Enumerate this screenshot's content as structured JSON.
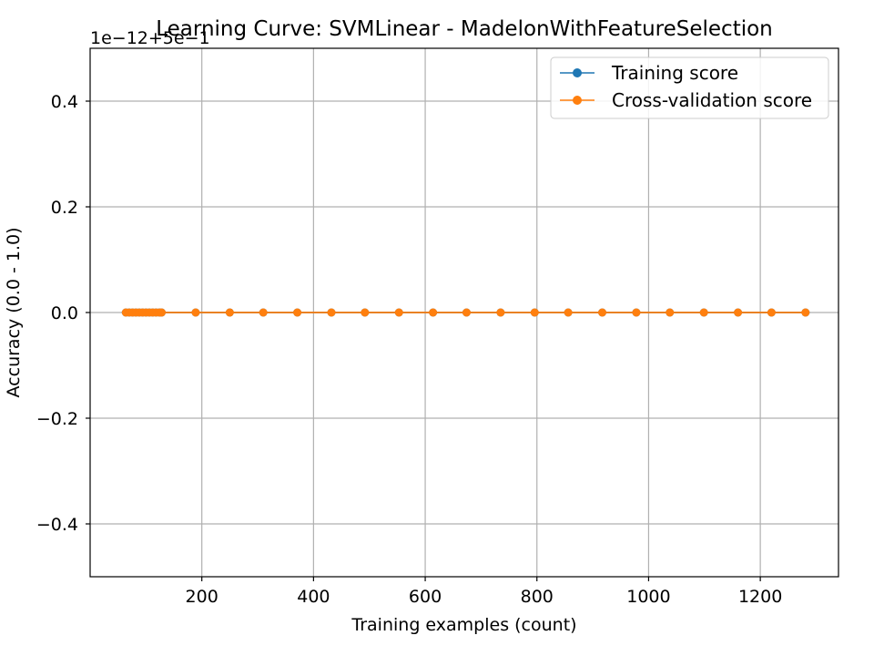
{
  "chart_data": {
    "type": "line",
    "title": "Learning Curve: SVMLinear - MadelonWithFeatureSelection",
    "xlabel": "Training examples (count)",
    "ylabel": "Accuracy (0.0 - 1.0)",
    "offset_text": "1e−12+5e−1",
    "xlim": [
      0,
      1340
    ],
    "ylim": [
      -0.5,
      0.5
    ],
    "xticks": [
      200,
      400,
      600,
      800,
      1000,
      1200
    ],
    "yticks": [
      -0.4,
      -0.2,
      0.0,
      0.2,
      0.4
    ],
    "ytick_labels": [
      "−0.4",
      "−0.2",
      "0.0",
      "0.2",
      "0.4"
    ],
    "grid": true,
    "legend_position": "top-right",
    "x": [
      64,
      70,
      76,
      82,
      88,
      94,
      100,
      106,
      112,
      118,
      124,
      128,
      189,
      250,
      310,
      371,
      432,
      492,
      553,
      614,
      674,
      735,
      796,
      856,
      917,
      978,
      1038,
      1099,
      1160,
      1220,
      1281
    ],
    "series": [
      {
        "name": "Training score",
        "color": "#1f77b4",
        "values": [
          0,
          0,
          0,
          0,
          0,
          0,
          0,
          0,
          0,
          0,
          0,
          0,
          0,
          0,
          0,
          0,
          0,
          0,
          0,
          0,
          0,
          0,
          0,
          0,
          0,
          0,
          0,
          0,
          0,
          0,
          0
        ]
      },
      {
        "name": "Cross-validation score",
        "color": "#ff7f0e",
        "values": [
          0,
          0,
          0,
          0,
          0,
          0,
          0,
          0,
          0,
          0,
          0,
          0,
          0,
          0,
          0,
          0,
          0,
          0,
          0,
          0,
          0,
          0,
          0,
          0,
          0,
          0,
          0,
          0,
          0,
          0,
          0
        ]
      }
    ]
  }
}
